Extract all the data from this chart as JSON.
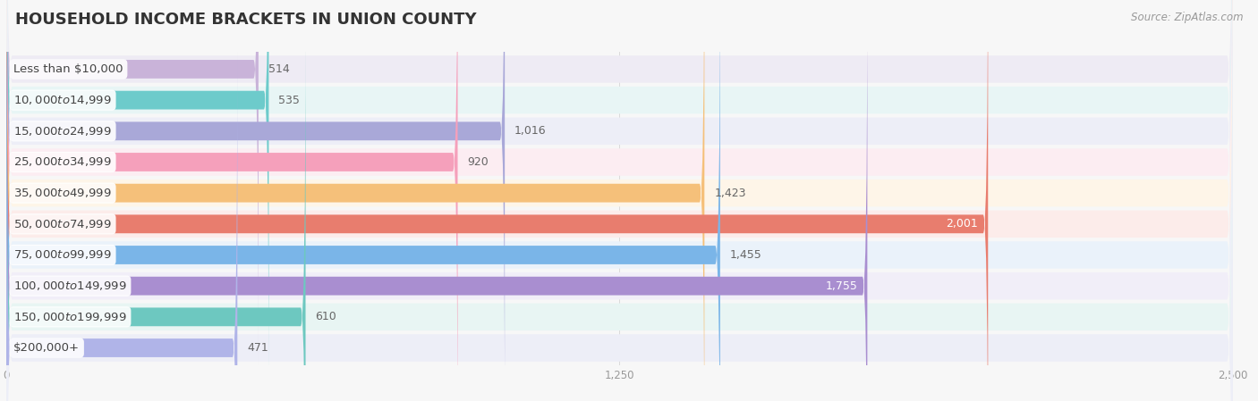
{
  "title": "HOUSEHOLD INCOME BRACKETS IN UNION COUNTY",
  "source": "Source: ZipAtlas.com",
  "categories": [
    "Less than $10,000",
    "$10,000 to $14,999",
    "$15,000 to $24,999",
    "$25,000 to $34,999",
    "$35,000 to $49,999",
    "$50,000 to $74,999",
    "$75,000 to $99,999",
    "$100,000 to $149,999",
    "$150,000 to $199,999",
    "$200,000+"
  ],
  "values": [
    514,
    535,
    1016,
    920,
    1423,
    2001,
    1455,
    1755,
    610,
    471
  ],
  "bar_colors": [
    "#c9b3d9",
    "#6dcbcb",
    "#a9a8d8",
    "#f5a0bb",
    "#f5c07a",
    "#e87d6e",
    "#7ab5e8",
    "#a98ed0",
    "#6dc8c0",
    "#b0b4e8"
  ],
  "row_bg_colors": [
    "#eeebf4",
    "#e8f5f5",
    "#edeef7",
    "#fcedf2",
    "#fef5e8",
    "#fcecea",
    "#eaf2fa",
    "#f1eef8",
    "#e8f5f3",
    "#edeef7"
  ],
  "value_labels": [
    "514",
    "535",
    "1,016",
    "920",
    "1,423",
    "2,001",
    "1,455",
    "1,755",
    "610",
    "471"
  ],
  "value_inside": [
    false,
    false,
    false,
    false,
    false,
    true,
    false,
    true,
    false,
    false
  ],
  "xlim": [
    0,
    2500
  ],
  "xticks": [
    0,
    1250,
    2500
  ],
  "background_color": "#f7f7f7",
  "title_fontsize": 13,
  "label_fontsize": 9.5,
  "value_fontsize": 9,
  "source_fontsize": 8.5
}
